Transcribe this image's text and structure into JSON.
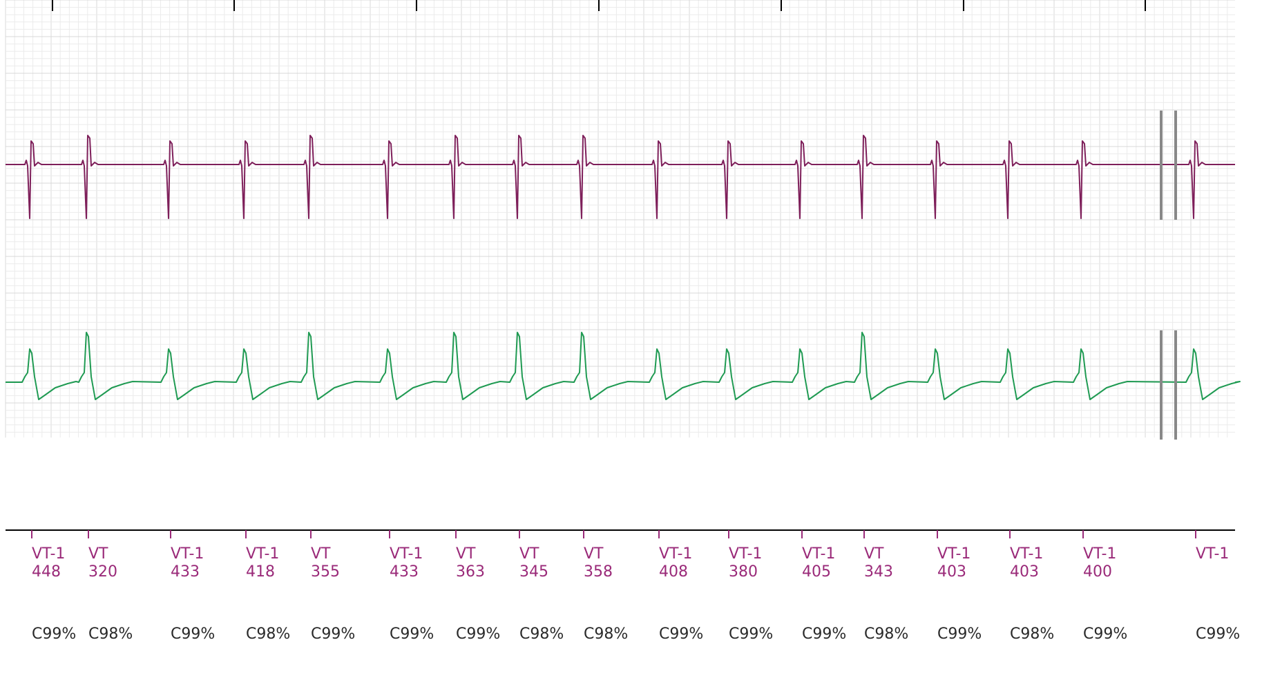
{
  "colors": {
    "background": "#ffffff",
    "grid_major": "#d8d8d8",
    "grid_minor": "#ebebeb",
    "channel1": "#7e1f5a",
    "channel2": "#1f9a52",
    "gap_marker": "#888888",
    "label_code": "#9a2a79",
    "label_conf": "#2a2a2a",
    "axis": "#000000"
  },
  "chart_data": {
    "type": "line",
    "grid": true,
    "channels": [
      {
        "color": "#7e1f5a",
        "waveform": "far-field: biphasic spike, deep negative deflection"
      },
      {
        "color": "#1f9a52",
        "waveform": "near-field: positive spike with negative undershoot"
      }
    ],
    "beats": [
      {
        "code": "VT-1",
        "interval": "448",
        "confidence": "C99%"
      },
      {
        "code": "VT",
        "interval": "320",
        "confidence": "C98%"
      },
      {
        "code": "VT-1",
        "interval": "433",
        "confidence": "C99%"
      },
      {
        "code": "VT-1",
        "interval": "418",
        "confidence": "C98%"
      },
      {
        "code": "VT",
        "interval": "355",
        "confidence": "C99%"
      },
      {
        "code": "VT-1",
        "interval": "433",
        "confidence": "C99%"
      },
      {
        "code": "VT",
        "interval": "363",
        "confidence": "C99%"
      },
      {
        "code": "VT",
        "interval": "345",
        "confidence": "C98%"
      },
      {
        "code": "VT",
        "interval": "358",
        "confidence": "C98%"
      },
      {
        "code": "VT-1",
        "interval": "408",
        "confidence": "C99%"
      },
      {
        "code": "VT-1",
        "interval": "380",
        "confidence": "C99%"
      },
      {
        "code": "VT-1",
        "interval": "405",
        "confidence": "C99%"
      },
      {
        "code": "VT",
        "interval": "343",
        "confidence": "C98%"
      },
      {
        "code": "VT-1",
        "interval": "403",
        "confidence": "C99%"
      },
      {
        "code": "VT-1",
        "interval": "403",
        "confidence": "C98%"
      },
      {
        "code": "VT-1",
        "interval": "400",
        "confidence": "C99%"
      },
      {
        "code": "VT-1",
        "interval": "",
        "confidence": "C99%"
      }
    ],
    "discontinuity_after_beat": 16
  }
}
